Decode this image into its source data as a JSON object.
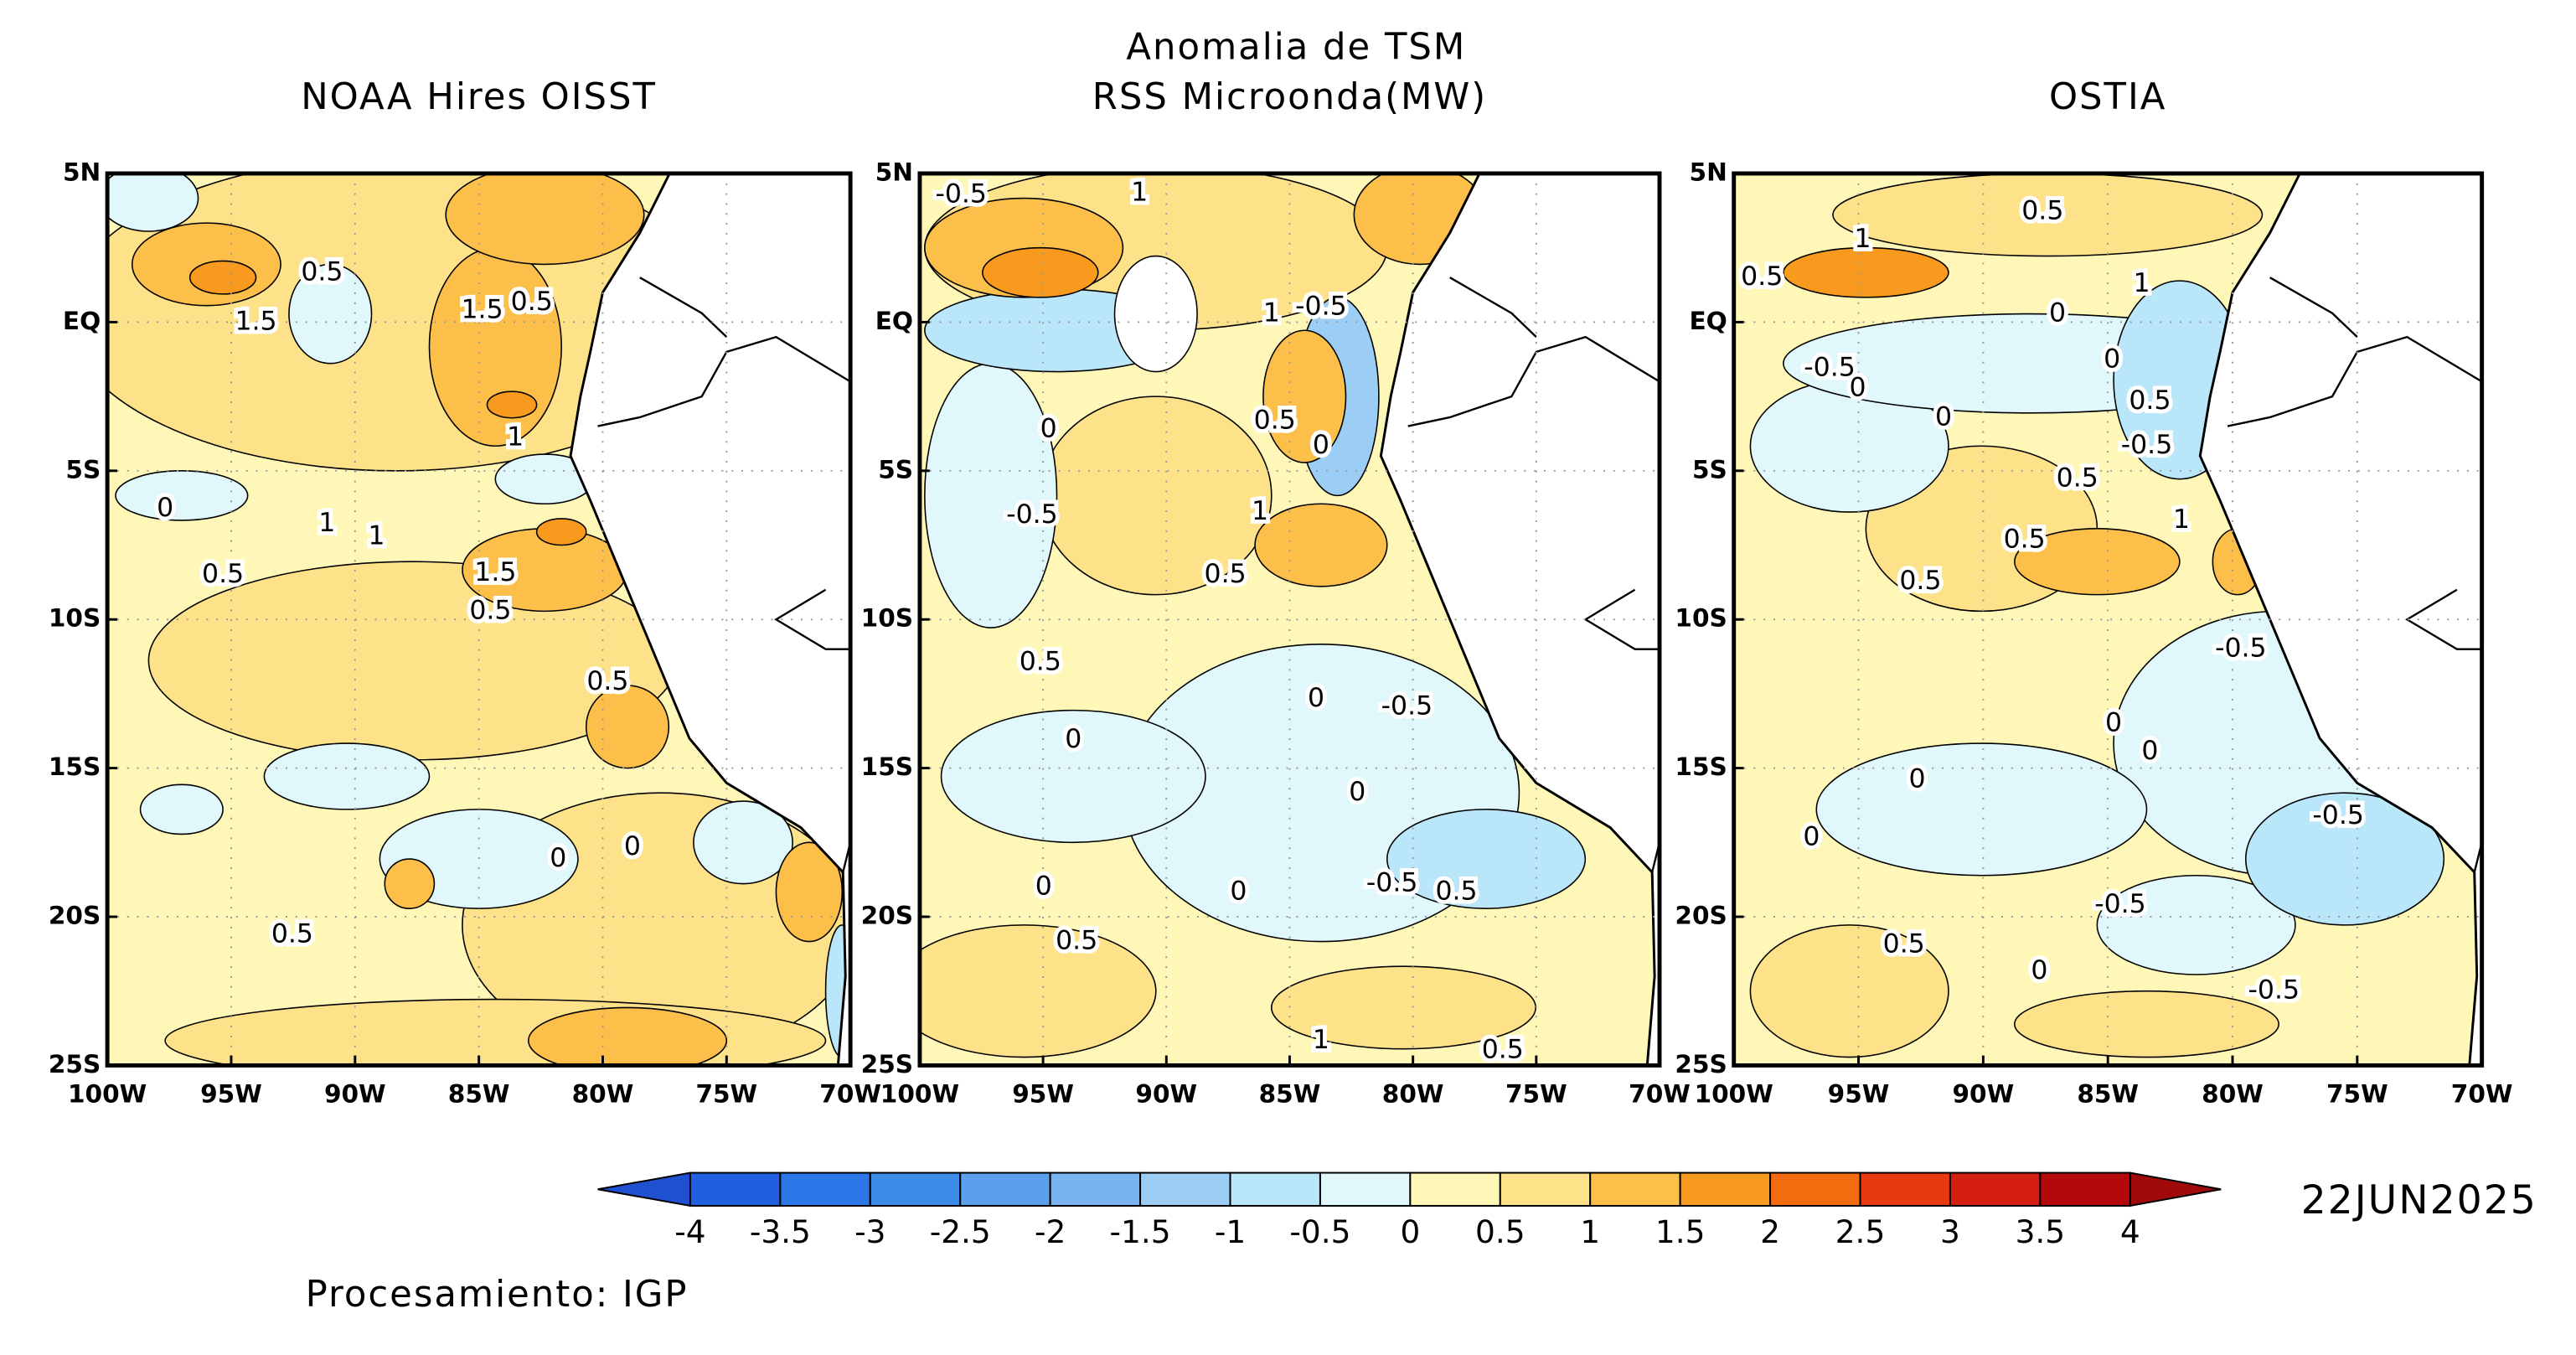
{
  "title": "Anomalia de TSM",
  "panels": [
    {
      "title": "NOAA Hires OISST",
      "contour_labels": [
        "0.5",
        "1.5",
        "1.5",
        "0.5",
        "1",
        "0",
        "1",
        "1",
        "0.5",
        "1.5",
        "0.5",
        "0.5",
        "0",
        "0",
        "0.5"
      ]
    },
    {
      "title": "RSS Microonda(MW)",
      "contour_labels": [
        "-0.5",
        "1",
        "1",
        "-0.5",
        "0.5",
        "0",
        "0",
        "-0.5",
        "1",
        "0.5",
        "0.5",
        "0",
        "-0.5",
        "0",
        "0",
        "0",
        "-0.5",
        "0.5",
        "0",
        "0.5",
        "1",
        "0.5"
      ]
    },
    {
      "title": "OSTIA",
      "contour_labels": [
        "0.5",
        "1",
        "0.5",
        "1",
        "0",
        "0",
        "-0.5",
        "0",
        "0.5",
        "0",
        "-0.5",
        "0.5",
        "0.5",
        "1",
        "0.5",
        "-0.5",
        "0",
        "0",
        "0",
        "-0.5",
        "0",
        "-0.5",
        "0.5",
        "0",
        "-0.5"
      ]
    }
  ],
  "map": {
    "xticks": [
      "100W",
      "95W",
      "90W",
      "85W",
      "80W",
      "75W",
      "70W"
    ],
    "yticks": [
      "5N",
      "EQ",
      "5S",
      "10S",
      "15S",
      "20S",
      "25S"
    ]
  },
  "colorbar": {
    "ticks": [
      -4,
      -3.5,
      -3,
      -2.5,
      -2,
      -1.5,
      -1,
      -0.5,
      0,
      0.5,
      1,
      1.5,
      2,
      2.5,
      3,
      3.5,
      4
    ],
    "colors": [
      "#1f5fe0",
      "#2c77e8",
      "#3d8be8",
      "#5aa0ec",
      "#7ab4f0",
      "#9ccdf5",
      "#b9e6f8",
      "#e0f7fb",
      "#fff7b8",
      "#fde28a",
      "#fbbf4a",
      "#f89a1e",
      "#f56b10",
      "#e83a10",
      "#d31e10",
      "#b4080a"
    ],
    "under_color": "#1e50d0",
    "over_color": "#a00a0a"
  },
  "date": "22JUN2025",
  "credit": "Procesamiento: IGP"
}
